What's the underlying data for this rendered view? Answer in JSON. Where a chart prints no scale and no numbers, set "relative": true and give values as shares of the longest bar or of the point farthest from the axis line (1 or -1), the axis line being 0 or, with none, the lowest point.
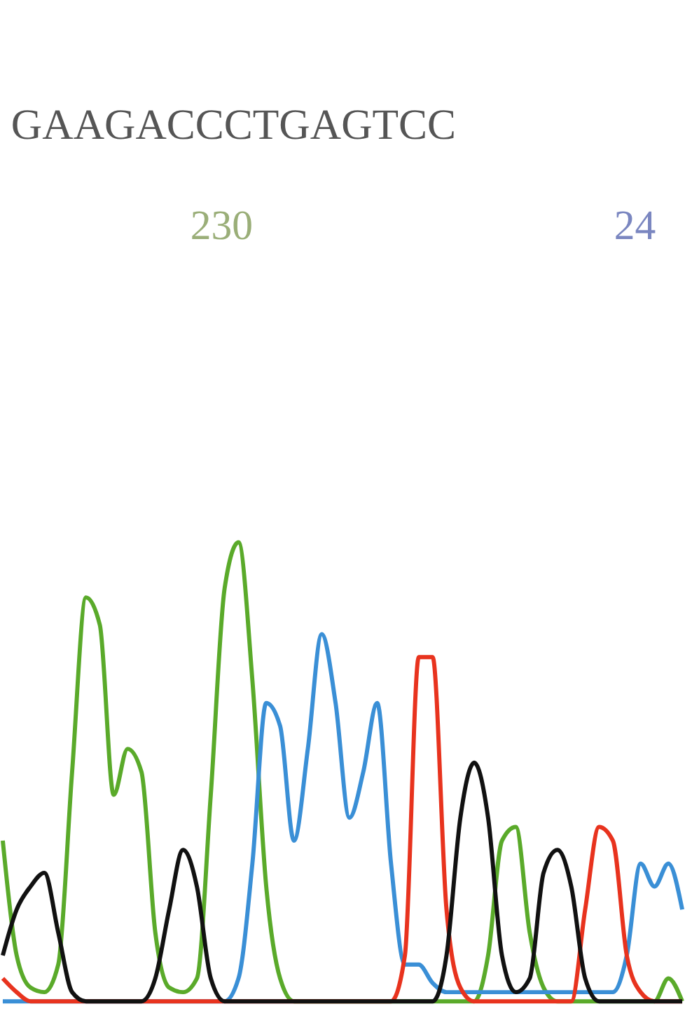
{
  "chart_data": {
    "type": "line",
    "relative": true,
    "legend": false,
    "grid": false,
    "marker": "none",
    "line_style": "solid",
    "annotations": [
      "GAAGACCCTGAGTCC",
      "230",
      "24"
    ],
    "categories": [
      null,
      null,
      null,
      null,
      null,
      null,
      null,
      null,
      null,
      null,
      null,
      null,
      null,
      null,
      null,
      null,
      null,
      null,
      null,
      null,
      null,
      null,
      null,
      null,
      null,
      null,
      null,
      null,
      null,
      null,
      null,
      null,
      null,
      null,
      null,
      null,
      null,
      null,
      null,
      null,
      null,
      null,
      null,
      null,
      null,
      null,
      null,
      null,
      null,
      null
    ],
    "series": [
      {
        "color": "#5aaa2a",
        "values": [
          0.35,
          0.1,
          0.03,
          0.02,
          0.08,
          0.5,
          0.88,
          0.82,
          0.45,
          0.55,
          0.5,
          0.15,
          0.03,
          0.02,
          0.05,
          0.45,
          0.9,
          1.0,
          0.7,
          0.25,
          0.05,
          0,
          0,
          0,
          0,
          0,
          0,
          0,
          0,
          0,
          0,
          0,
          0,
          0,
          0,
          0.1,
          0.35,
          0.38,
          0.15,
          0.03,
          0,
          0,
          0,
          0,
          0,
          0,
          0,
          0,
          0.05,
          0
        ]
      },
      {
        "color": "#3a8fd6",
        "values": [
          0,
          0,
          0,
          0,
          0,
          0,
          0,
          0,
          0,
          0,
          0,
          0,
          0,
          0,
          0,
          0,
          0,
          0.05,
          0.3,
          0.65,
          0.6,
          0.35,
          0.55,
          0.8,
          0.65,
          0.4,
          0.5,
          0.65,
          0.3,
          0.08,
          0.08,
          0.04,
          0.02,
          0.02,
          0.02,
          0.02,
          0.02,
          0.02,
          0.02,
          0.02,
          0.02,
          0.02,
          0.02,
          0.02,
          0.02,
          0.1,
          0.3,
          0.25,
          0.3,
          0.2
        ]
      },
      {
        "color": "#e8331e",
        "values": [
          0.05,
          0.02,
          0,
          0,
          0,
          0,
          0,
          0,
          0,
          0,
          0,
          0,
          0,
          0,
          0,
          0,
          0,
          0,
          0,
          0,
          0,
          0,
          0,
          0,
          0,
          0,
          0,
          0,
          0,
          0.1,
          0.75,
          0.75,
          0.2,
          0.03,
          0,
          0,
          0,
          0,
          0,
          0,
          0,
          0,
          0.2,
          0.38,
          0.35,
          0.1,
          0.02,
          0,
          0,
          0
        ]
      },
      {
        "color": "#111111",
        "values": [
          0.1,
          0.2,
          0.25,
          0.28,
          0.15,
          0.02,
          0,
          0,
          0,
          0,
          0,
          0.05,
          0.2,
          0.33,
          0.25,
          0.05,
          0,
          0,
          0,
          0,
          0,
          0,
          0,
          0,
          0,
          0,
          0,
          0,
          0,
          0,
          0,
          0,
          0.1,
          0.4,
          0.52,
          0.4,
          0.1,
          0.02,
          0.05,
          0.28,
          0.33,
          0.25,
          0.05,
          0,
          0,
          0,
          0,
          0,
          0,
          0
        ]
      }
    ]
  }
}
